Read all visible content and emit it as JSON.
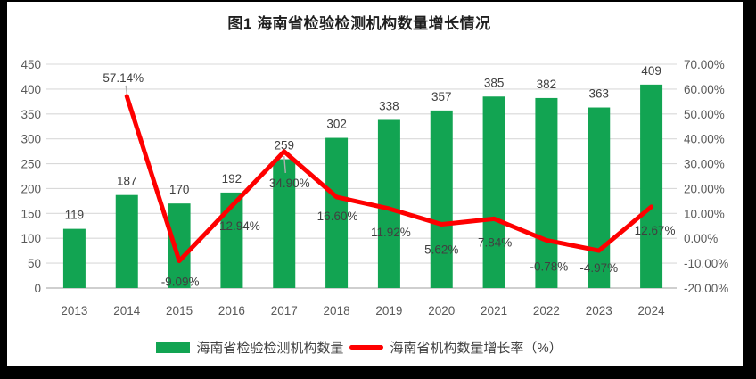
{
  "figure": {
    "title": "图1 海南省检验检测机构数量增长情况"
  },
  "colors": {
    "bar": "#12A452",
    "line": "#FE0000",
    "grid": "#D9D9D9",
    "axis_line": "#BFBFBF",
    "tick_text": "#595959",
    "data_label": "#404040",
    "leader": "#AFAFAF"
  },
  "chart_data": {
    "type": "bar+line combo",
    "title": "图1 海南省检验检测机构数量增长情况",
    "categories": [
      "2013",
      "2014",
      "2015",
      "2016",
      "2017",
      "2018",
      "2019",
      "2020",
      "2021",
      "2022",
      "2023",
      "2024"
    ],
    "series": [
      {
        "name": "海南省检验检测机构数量",
        "type": "bar",
        "axis": "left",
        "values": [
          119,
          187,
          170,
          192,
          259,
          302,
          338,
          357,
          385,
          382,
          363,
          409
        ],
        "labels": [
          "119",
          "187",
          "170",
          "192",
          "259",
          "302",
          "338",
          "357",
          "385",
          "382",
          "363",
          "409"
        ]
      },
      {
        "name": "海南省机构数量增长率（%）",
        "type": "line",
        "axis": "right",
        "values": [
          null,
          57.14,
          -9.09,
          12.94,
          34.9,
          16.6,
          11.92,
          5.62,
          7.84,
          -0.78,
          -4.97,
          12.67
        ],
        "labels": [
          null,
          "57.14%",
          "-9.09%",
          "12.94%",
          "34.90%",
          "16.60%",
          "11.92%",
          "5.62%",
          "7.84%",
          "-0.78%",
          "-4.97%",
          "12.67%"
        ]
      }
    ],
    "left_axis": {
      "min": 0,
      "max": 450,
      "step": 50,
      "ticks": [
        "0",
        "50",
        "100",
        "150",
        "200",
        "250",
        "300",
        "350",
        "400",
        "450"
      ]
    },
    "right_axis": {
      "min": -20,
      "max": 70,
      "step": 10,
      "ticks": [
        "-20.00%",
        "-10.00%",
        "0.00%",
        "10.00%",
        "20.00%",
        "30.00%",
        "40.00%",
        "50.00%",
        "60.00%",
        "70.00%"
      ]
    },
    "grid": true,
    "legend_position": "bottom"
  }
}
